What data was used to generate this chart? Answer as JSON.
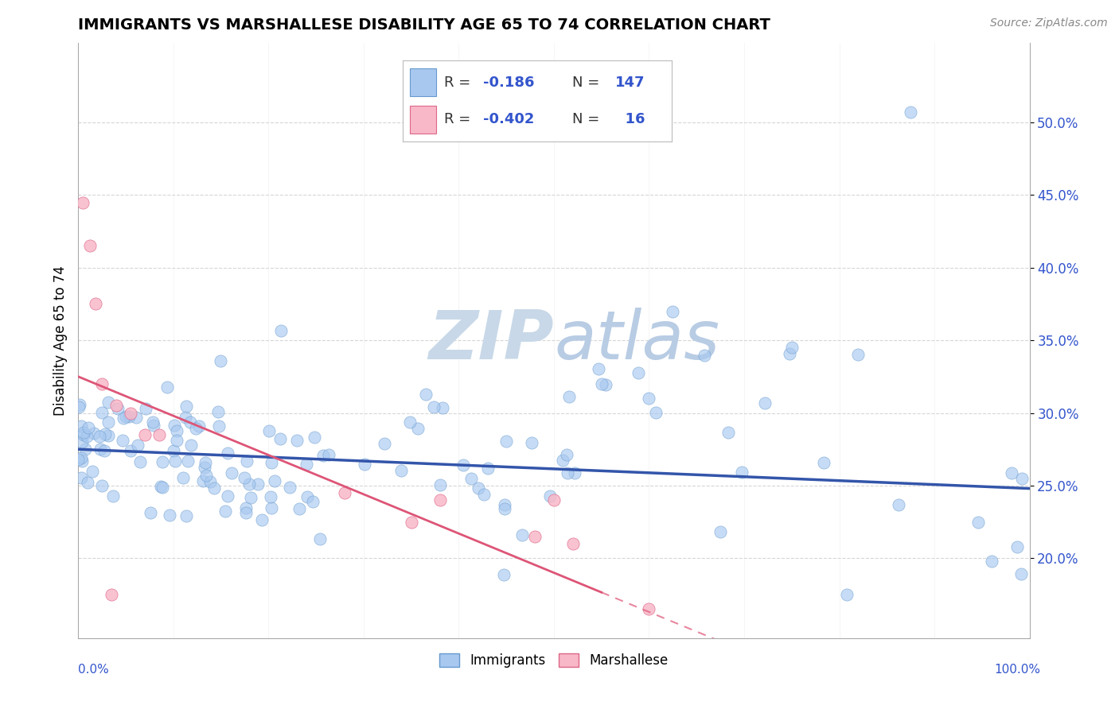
{
  "title": "IMMIGRANTS VS MARSHALLESE DISABILITY AGE 65 TO 74 CORRELATION CHART",
  "source_text": "Source: ZipAtlas.com",
  "ylabel": "Disability Age 65 to 74",
  "xmin": 0.0,
  "xmax": 1.0,
  "ymin": 0.145,
  "ymax": 0.555,
  "immigrants_R": -0.186,
  "immigrants_N": 147,
  "marshallese_R": -0.402,
  "marshallese_N": 16,
  "immigrants_color": "#a8c8f0",
  "immigrants_edge": "#6699cc",
  "marshallese_color": "#f8b8c8",
  "marshallese_edge": "#dd6688",
  "trend_blue": "#3355aa",
  "trend_pink": "#dd5577",
  "legend_text_color": "#3355cc",
  "background_color": "#ffffff",
  "grid_color": "#cccccc",
  "watermark_color": "#d0dff0",
  "marshallese_x": [
    0.005,
    0.012,
    0.018,
    0.025,
    0.04,
    0.055,
    0.07,
    0.085,
    0.28,
    0.35,
    0.38,
    0.48,
    0.5,
    0.52,
    0.6,
    0.035
  ],
  "marshallese_y": [
    0.445,
    0.415,
    0.375,
    0.32,
    0.305,
    0.3,
    0.285,
    0.285,
    0.245,
    0.225,
    0.24,
    0.215,
    0.24,
    0.21,
    0.165,
    0.175
  ]
}
